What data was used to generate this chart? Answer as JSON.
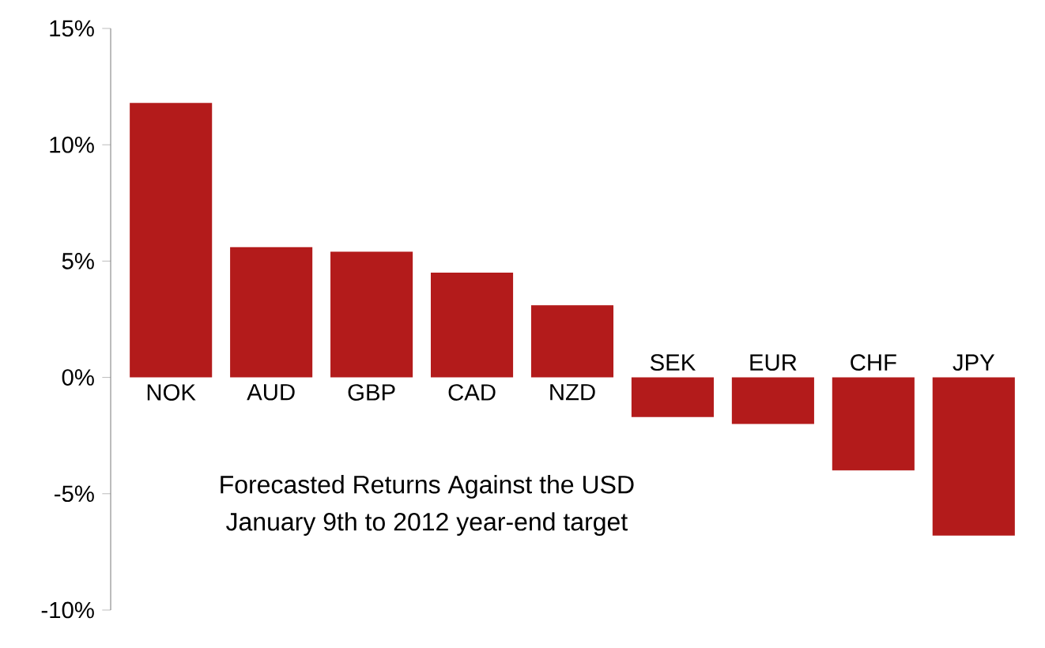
{
  "chart_data": {
    "type": "bar",
    "title": "Forecasted Returns Against the USD",
    "subtitle": "January 9th to 2012 year-end target",
    "categories": [
      "NOK",
      "AUD",
      "GBP",
      "CAD",
      "NZD",
      "SEK",
      "EUR",
      "CHF",
      "JPY"
    ],
    "values": [
      11.8,
      5.6,
      5.4,
      4.5,
      3.1,
      -1.7,
      -2.0,
      -4.0,
      -6.8
    ],
    "color": "#b31b1b",
    "ylim": [
      -10,
      15
    ],
    "yticks": [
      {
        "value": -10,
        "label": "-10%"
      },
      {
        "value": -5,
        "label": "-5%"
      },
      {
        "value": 0,
        "label": "0%"
      },
      {
        "value": 5,
        "label": "5%"
      },
      {
        "value": 10,
        "label": "10%"
      },
      {
        "value": 15,
        "label": "15%"
      }
    ]
  }
}
